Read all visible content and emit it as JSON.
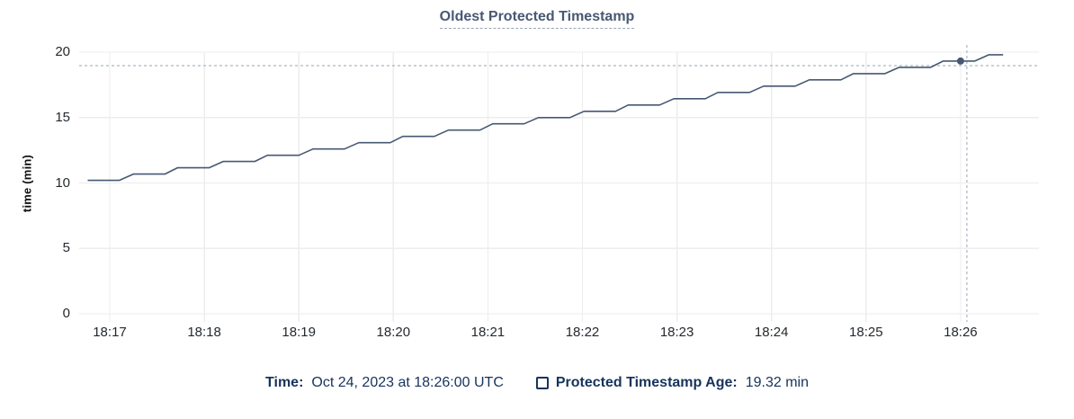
{
  "title": "Oldest Protected Timestamp",
  "colors": {
    "line": "#475872",
    "grid": "#ededed",
    "crosshair": "#a9b6c4",
    "navy_text": "#17335c",
    "axis_text": "#24292e",
    "title_text": "#475872",
    "title_underline": "#9aa5b5"
  },
  "footer": {
    "time_label": "Time:",
    "time_value": "Oct 24, 2023 at 18:26:00 UTC",
    "series_label": "Protected Timestamp Age:",
    "series_value": "19.32 min"
  },
  "chart_data": {
    "type": "line",
    "title": "Oldest Protected Timestamp",
    "xlabel": "",
    "ylabel": "time (min)",
    "ylim": [
      0,
      20
    ],
    "yticks": [
      0,
      5,
      10,
      15,
      20
    ],
    "xticks": [
      "18:17",
      "18:18",
      "18:19",
      "18:20",
      "18:21",
      "18:22",
      "18:23",
      "18:24",
      "18:25",
      "18:26"
    ],
    "grid": true,
    "legend_position": "bottom",
    "series": [
      {
        "name": "Protected Timestamp Age",
        "unit": "min",
        "points": [
          [
            "18:16:46",
            10.2
          ],
          [
            "18:17:06",
            10.2
          ],
          [
            "18:17:15",
            10.68
          ],
          [
            "18:17:35",
            10.68
          ],
          [
            "18:17:43",
            11.16
          ],
          [
            "18:18:03",
            11.16
          ],
          [
            "18:18:12",
            11.64
          ],
          [
            "18:18:32",
            11.64
          ],
          [
            "18:18:40",
            12.12
          ],
          [
            "18:19:00",
            12.12
          ],
          [
            "18:19:09",
            12.6
          ],
          [
            "18:19:29",
            12.6
          ],
          [
            "18:19:38",
            13.08
          ],
          [
            "18:19:58",
            13.08
          ],
          [
            "18:20:06",
            13.56
          ],
          [
            "18:20:26",
            13.56
          ],
          [
            "18:20:35",
            14.04
          ],
          [
            "18:20:55",
            14.04
          ],
          [
            "18:21:03",
            14.52
          ],
          [
            "18:21:23",
            14.52
          ],
          [
            "18:21:32",
            15.0
          ],
          [
            "18:21:52",
            15.0
          ],
          [
            "18:22:01",
            15.48
          ],
          [
            "18:22:21",
            15.48
          ],
          [
            "18:22:29",
            15.96
          ],
          [
            "18:22:49",
            15.96
          ],
          [
            "18:22:58",
            16.44
          ],
          [
            "18:23:18",
            16.44
          ],
          [
            "18:23:26",
            16.92
          ],
          [
            "18:23:46",
            16.92
          ],
          [
            "18:23:55",
            17.4
          ],
          [
            "18:24:15",
            17.4
          ],
          [
            "18:24:24",
            17.88
          ],
          [
            "18:24:44",
            17.88
          ],
          [
            "18:24:52",
            18.36
          ],
          [
            "18:25:12",
            18.36
          ],
          [
            "18:25:21",
            18.84
          ],
          [
            "18:25:41",
            18.84
          ],
          [
            "18:25:49",
            19.32
          ],
          [
            "18:26:09",
            19.32
          ],
          [
            "18:26:18",
            19.8
          ],
          [
            "18:26:27",
            19.8
          ]
        ]
      }
    ],
    "cursor": {
      "time": "18:26:04",
      "value": 18.97
    },
    "hover_point": {
      "time": "18:26:00",
      "value": 19.32
    }
  }
}
